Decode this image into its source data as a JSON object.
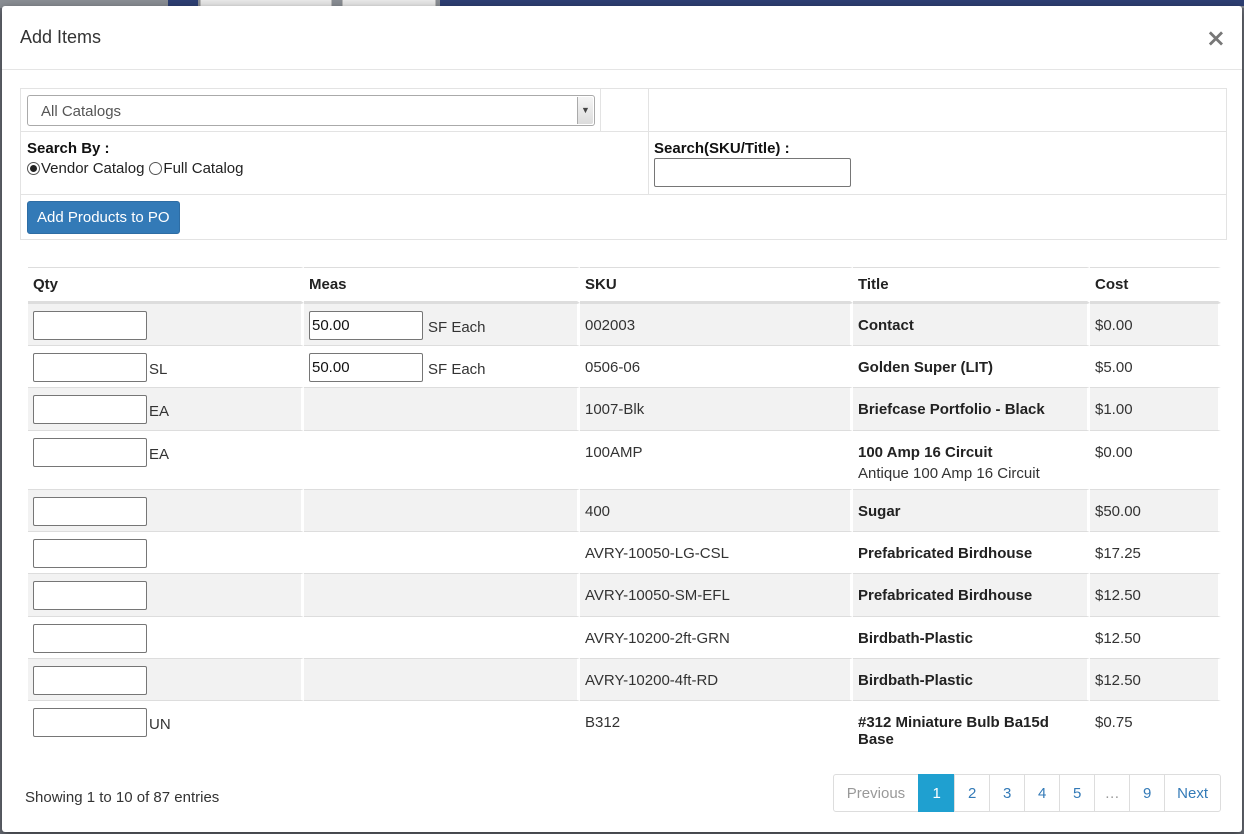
{
  "modal": {
    "title": "Add Items",
    "close_label": "×"
  },
  "filters": {
    "catalog_select": "All Catalogs",
    "search_by_label": "Search By :",
    "radio_vendor": "Vendor Catalog",
    "radio_full": "Full Catalog",
    "search_label": "Search(SKU/Title) :",
    "search_value": "",
    "add_button": "Add Products to PO"
  },
  "table": {
    "headers": {
      "qty": "Qty",
      "meas": "Meas",
      "sku": "SKU",
      "title": "Title",
      "cost": "Cost"
    },
    "rows": [
      {
        "qty_unit": "",
        "meas_value": "50.00",
        "meas_unit": "SF Each",
        "sku": "002003",
        "title": "Contact",
        "subtitle": "",
        "cost": "$0.00"
      },
      {
        "qty_unit": "SL",
        "meas_value": "50.00",
        "meas_unit": "SF Each",
        "sku": "0506-06",
        "title": "Golden Super (LIT)",
        "subtitle": "",
        "cost": "$5.00"
      },
      {
        "qty_unit": "EA",
        "meas_value": "",
        "meas_unit": "",
        "sku": "1007-Blk",
        "title": "Briefcase Portfolio - Black",
        "subtitle": "",
        "cost": "$1.00"
      },
      {
        "qty_unit": "EA",
        "meas_value": "",
        "meas_unit": "",
        "sku": "100AMP",
        "title": "100 Amp 16 Circuit",
        "subtitle": "Antique 100 Amp 16 Circuit",
        "cost": "$0.00"
      },
      {
        "qty_unit": "",
        "meas_value": "",
        "meas_unit": "",
        "sku": "400",
        "title": "Sugar",
        "subtitle": "",
        "cost": "$50.00"
      },
      {
        "qty_unit": "",
        "meas_value": "",
        "meas_unit": "",
        "sku": "AVRY-10050-LG-CSL",
        "title": "Prefabricated Birdhouse",
        "subtitle": "",
        "cost": "$17.25"
      },
      {
        "qty_unit": "",
        "meas_value": "",
        "meas_unit": "",
        "sku": "AVRY-10050-SM-EFL",
        "title": "Prefabricated Birdhouse",
        "subtitle": "",
        "cost": "$12.50"
      },
      {
        "qty_unit": "",
        "meas_value": "",
        "meas_unit": "",
        "sku": "AVRY-10200-2ft-GRN",
        "title": "Birdbath-Plastic",
        "subtitle": "",
        "cost": "$12.50"
      },
      {
        "qty_unit": "",
        "meas_value": "",
        "meas_unit": "",
        "sku": "AVRY-10200-4ft-RD",
        "title": "Birdbath-Plastic",
        "subtitle": "",
        "cost": "$12.50"
      },
      {
        "qty_unit": "UN",
        "meas_value": "",
        "meas_unit": "",
        "sku": "B312",
        "title": "#312 Miniature Bulb Ba15d Base",
        "subtitle": "",
        "cost": "$0.75"
      }
    ]
  },
  "footer": {
    "info": "Showing 1 to 10 of 87 entries",
    "pagination": [
      "Previous",
      "1",
      "2",
      "3",
      "4",
      "5",
      "…",
      "9",
      "Next"
    ],
    "active_page": "1"
  }
}
